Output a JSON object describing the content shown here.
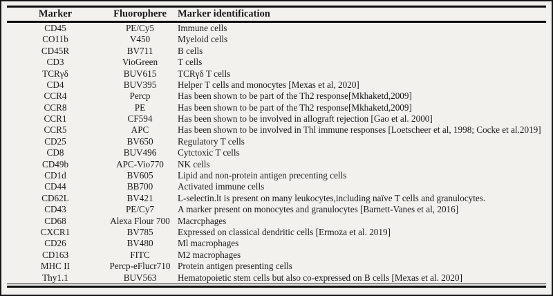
{
  "colors": {
    "background": "#f2f1ee",
    "border": "#161616",
    "rule": "#0d0d0d",
    "text": "#1b1b1b"
  },
  "table": {
    "headers": {
      "marker": "Marker",
      "fluorophore": "Fluorophere",
      "identification": "Marker identification"
    },
    "rows": [
      {
        "marker": "CD45",
        "fluorophore": "PE/Cy5",
        "identification": "Immune cells"
      },
      {
        "marker": "CO11b",
        "fluorophore": "V450",
        "identification": "Myeloid cells"
      },
      {
        "marker": "CD45R",
        "fluorophore": "BV711",
        "identification": "B cells"
      },
      {
        "marker": "CD3",
        "fluorophore": "VioGreen",
        "identification": "T cells"
      },
      {
        "marker": "TCRγδ",
        "fluorophore": "BUV615",
        "identification": "TCRγδ T cells"
      },
      {
        "marker": "CD4",
        "fluorophore": "BUV395",
        "identification": "Helper T cells and monocytes [Mexas et al, 2020]"
      },
      {
        "marker": "CCR4",
        "fluorophore": "Percp",
        "identification": "Has been shown to be part of the Th2 response[Mkhaketd,2009]"
      },
      {
        "marker": "CCR8",
        "fluorophore": "PE",
        "identification": "Has been shown to be part of the Th2 response[Mkhaketd,2009]"
      },
      {
        "marker": "CCR1",
        "fluorophore": "CF594",
        "identification": "Has been shown to be involved in allograft rejection [Gao et al. 2000]"
      },
      {
        "marker": "CCR5",
        "fluorophore": "APC",
        "identification": "Has been shown to be involved in Thl immune responses [Loetscheer et al, 1998; Cocke et al.2019]"
      },
      {
        "marker": "CD25",
        "fluorophore": "BV650",
        "identification": "Regulatory T cells"
      },
      {
        "marker": "CD8",
        "fluorophore": "BUV496",
        "identification": "Cytctoxic T cells"
      },
      {
        "marker": "CD49b",
        "fluorophore": "APC-Vio770",
        "identification": "NK cells"
      },
      {
        "marker": "CD1d",
        "fluorophore": "BV605",
        "identification": "Lipid and non-protein antigen precenting cells"
      },
      {
        "marker": "CD44",
        "fluorophore": "BB700",
        "identification": "Activated immune cells"
      },
      {
        "marker": "CD62L",
        "fluorophore": "BV421",
        "identification": "L-selectin.lt is present on many leukocytes,including naïve T cells and granulocytes."
      },
      {
        "marker": "CD43",
        "fluorophore": "PE/Cy7",
        "identification": "A marker present on monocytes and granulocytes [Barnett-Vanes et al, 2016]"
      },
      {
        "marker": "CD68",
        "fluorophore": "Alexa Flour 700",
        "identification": "Macrcphages"
      },
      {
        "marker": "CXCR1",
        "fluorophore": "BV785",
        "identification": "Expressed on classical dendritic cells [Ermoza et al. 2019]"
      },
      {
        "marker": "CD26",
        "fluorophore": "BV480",
        "identification": "Ml macrophages"
      },
      {
        "marker": "CD163",
        "fluorophore": "FITC",
        "identification": "M2 macrophages"
      },
      {
        "marker": "MHC II",
        "fluorophore": "Percp-eFlucr710",
        "identification": "Protein antigen presenting cells"
      },
      {
        "marker": "Thy1.1",
        "fluorophore": "BUV563",
        "identification": "Hematopoietic stem cells but also co-expressed on B cells [Mexas et al. 2020]"
      }
    ]
  }
}
